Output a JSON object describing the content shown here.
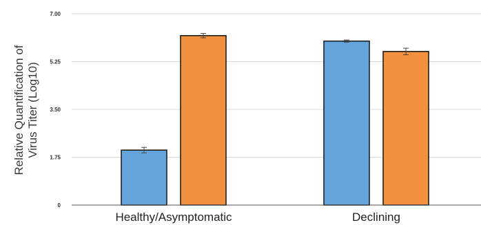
{
  "chart_data": {
    "type": "bar",
    "title": "",
    "ylabel_lines": [
      "Relative Quantification of",
      "Virus Titer (Log10)"
    ],
    "xlabel": "",
    "ylim": [
      0,
      7.0
    ],
    "yticks": [
      "0",
      "1.75",
      "3.50",
      "5.25",
      "7.00"
    ],
    "ytick_values": [
      0,
      1.75,
      3.5,
      5.25,
      7.0
    ],
    "grid": true,
    "categories": [
      "Healthy/Asymptomatic",
      "Declining"
    ],
    "series": [
      {
        "values": [
          2.01,
          6.0
        ],
        "errors": [
          0.1,
          0.04
        ],
        "color": "#63a4dc"
      },
      {
        "values": [
          6.2,
          5.62
        ],
        "errors": [
          0.08,
          0.12
        ],
        "color": "#f2903d"
      }
    ]
  }
}
